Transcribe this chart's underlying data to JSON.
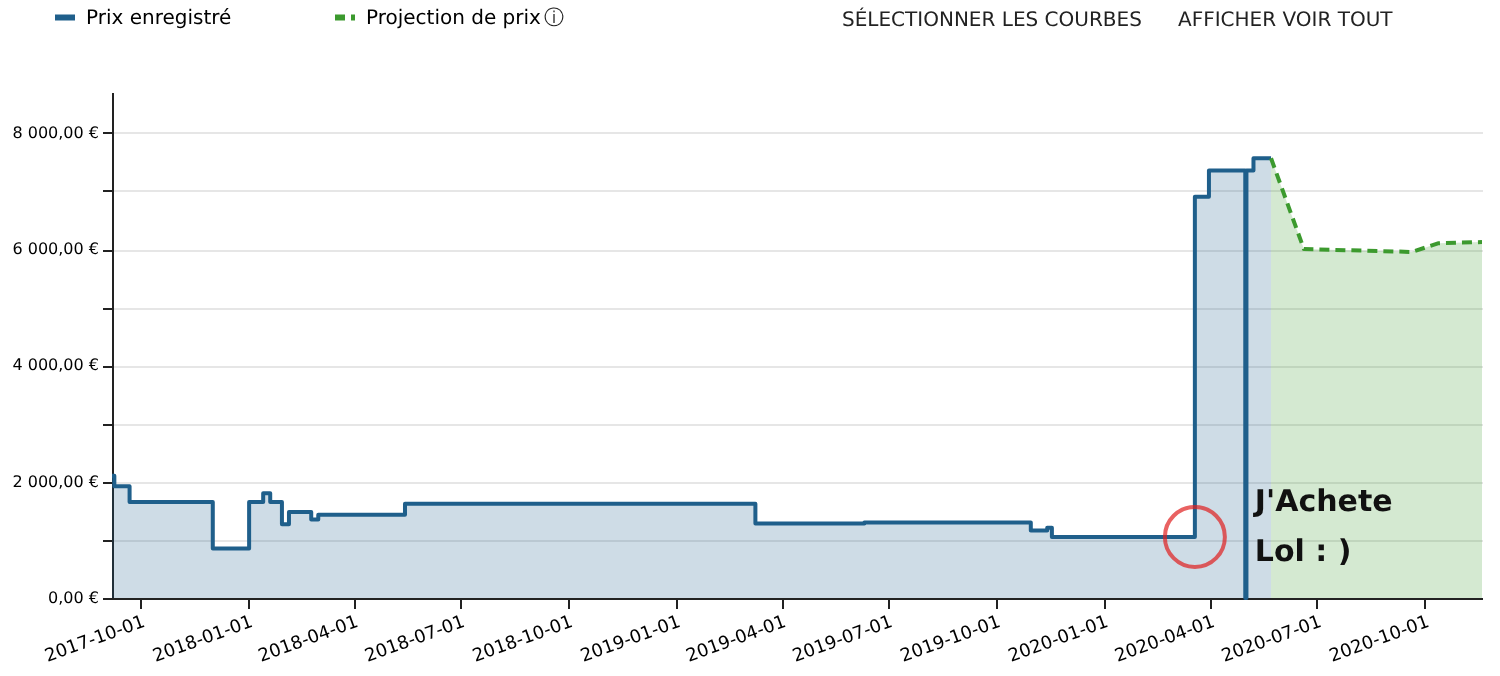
{
  "chart_data": {
    "type": "step",
    "xlim": [
      "2017-09-07",
      "2020-11-19"
    ],
    "xticks": [
      "2017-10-01",
      "2018-01-01",
      "2018-04-01",
      "2018-07-01",
      "2018-10-01",
      "2019-01-01",
      "2019-04-01",
      "2019-07-01",
      "2019-10-01",
      "2020-01-01",
      "2020-04-01",
      "2020-07-01",
      "2020-10-01"
    ],
    "ylim": [
      0,
      8700
    ],
    "yticks": [
      {
        "value": 0,
        "label": "0,00 €"
      },
      {
        "value": 1000,
        "label": null
      },
      {
        "value": 2000,
        "label": "2 000,00 €"
      },
      {
        "value": 3000,
        "label": null
      },
      {
        "value": 4000,
        "label": "4 000,00 €"
      },
      {
        "value": 5000,
        "label": null
      },
      {
        "value": 6000,
        "label": "6 000,00 €"
      },
      {
        "value": 7000,
        "label": null
      },
      {
        "value": 8000,
        "label": "8 000,00 €"
      }
    ],
    "grid": "y",
    "legend": "top left",
    "series": [
      {
        "name": "Prix enregistré",
        "type": "step",
        "color": "#1f5f8b",
        "x": [
          "2017-09-07",
          "2017-09-09",
          "2017-09-22",
          "2017-12-02",
          "2018-01-02",
          "2018-01-14",
          "2018-01-20",
          "2018-01-30",
          "2018-02-05",
          "2018-02-24",
          "2018-03-02",
          "2018-05-15",
          "2019-03-10",
          "2019-06-11",
          "2019-10-31",
          "2019-11-14",
          "2019-11-18",
          "2020-03-19",
          "2020-03-31",
          "2020-05-01",
          "2020-05-02",
          "2020-05-08",
          "2020-05-23"
        ],
        "values": [
          2100,
          1920,
          1650,
          850,
          1650,
          1800,
          1650,
          1270,
          1480,
          1350,
          1430,
          1620,
          1280,
          1300,
          1160,
          1210,
          1050,
          6900,
          7350,
          0,
          7350,
          7560,
          7560
        ]
      },
      {
        "name": "Projection de prix",
        "type": "area",
        "line_style": "dashed",
        "color": "#3c9a2e",
        "x": [
          "2020-05-23",
          "2020-06-20",
          "2020-09-20",
          "2020-10-13",
          "2020-11-19"
        ],
        "values": [
          7560,
          6000,
          5950,
          6100,
          6120
        ]
      }
    ],
    "annotations": [
      "ⓘ",
      "SÉLECTIONNER LES COURBES",
      "AFFICHER VOIR TOUT",
      {
        "text": "J'Achete Lol : )",
        "x": "2020-03-19",
        "y": 1050
      }
    ]
  }
}
